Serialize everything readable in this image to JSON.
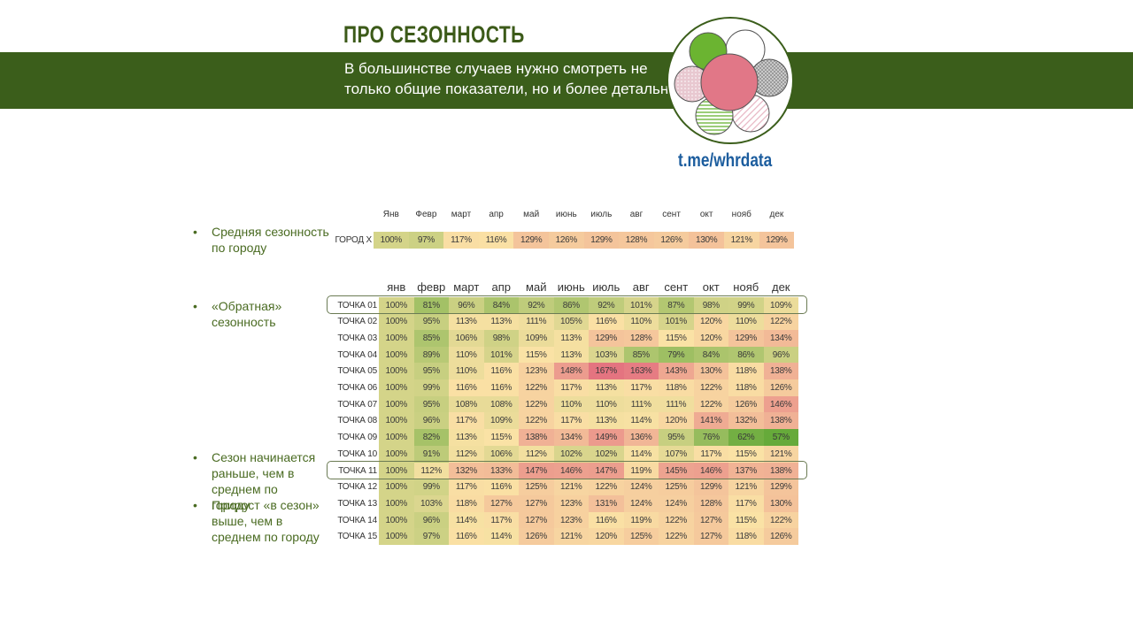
{
  "header": {
    "title": "ПРО СЕЗОННОСТЬ",
    "subtitle": "В большинстве случаев нужно смотреть не только общие показатели, но и более детально",
    "channel": "t.me/whrdata"
  },
  "bullets": [
    {
      "text": "Средняя сезонность по городу"
    },
    {
      "text": "«Обратная» сезонность"
    },
    {
      "text": "Сезон начинается раньше, чем в среднем по городу"
    },
    {
      "text": "Прирост «в сезон» выше, чем в среднем по городу"
    }
  ],
  "colors": {
    "green_dark": "#3b5e1b",
    "title_green": "#3c5a19",
    "link_blue": "#1c5d9e"
  },
  "city_table": {
    "months": [
      "Янв",
      "Февр",
      "март",
      "апр",
      "май",
      "июнь",
      "июль",
      "авг",
      "сент",
      "окт",
      "нояб",
      "дек"
    ],
    "row": {
      "label": "ГОРОД Х",
      "values": [
        100,
        97,
        117,
        116,
        129,
        126,
        129,
        128,
        126,
        130,
        121,
        129
      ]
    }
  },
  "points_table": {
    "months": [
      "янв",
      "февр",
      "март",
      "апр",
      "май",
      "июнь",
      "июль",
      "авг",
      "сент",
      "окт",
      "нояб",
      "дек"
    ],
    "rows": [
      {
        "label": "ТОЧКА 01",
        "values": [
          100,
          81,
          96,
          84,
          92,
          86,
          92,
          101,
          87,
          98,
          99,
          109
        ]
      },
      {
        "label": "ТОЧКА 02",
        "values": [
          100,
          95,
          113,
          113,
          111,
          105,
          116,
          110,
          101,
          120,
          110,
          122
        ]
      },
      {
        "label": "ТОЧКА 03",
        "values": [
          100,
          85,
          106,
          98,
          109,
          113,
          129,
          128,
          115,
          120,
          129,
          134
        ]
      },
      {
        "label": "ТОЧКА 04",
        "values": [
          100,
          89,
          110,
          101,
          115,
          113,
          103,
          85,
          79,
          84,
          86,
          96
        ]
      },
      {
        "label": "ТОЧКА 05",
        "values": [
          100,
          95,
          110,
          116,
          123,
          148,
          167,
          163,
          143,
          130,
          118,
          138
        ]
      },
      {
        "label": "ТОЧКА 06",
        "values": [
          100,
          99,
          116,
          116,
          122,
          117,
          113,
          117,
          118,
          122,
          118,
          126
        ]
      },
      {
        "label": "ТОЧКА 07",
        "values": [
          100,
          95,
          108,
          108,
          122,
          110,
          110,
          111,
          111,
          122,
          126,
          146
        ]
      },
      {
        "label": "ТОЧКА 08",
        "values": [
          100,
          96,
          117,
          109,
          122,
          117,
          113,
          114,
          120,
          141,
          132,
          138
        ]
      },
      {
        "label": "ТОЧКА 09",
        "values": [
          100,
          82,
          113,
          115,
          138,
          134,
          149,
          136,
          95,
          76,
          62,
          57
        ]
      },
      {
        "label": "ТОЧКА 10",
        "values": [
          100,
          91,
          112,
          106,
          112,
          102,
          102,
          114,
          107,
          117,
          115,
          121
        ]
      },
      {
        "label": "ТОЧКА 11",
        "values": [
          100,
          112,
          132,
          133,
          147,
          146,
          147,
          119,
          145,
          146,
          137,
          138
        ]
      },
      {
        "label": "ТОЧКА 12",
        "values": [
          100,
          99,
          117,
          116,
          125,
          121,
          122,
          124,
          125,
          129,
          121,
          129
        ]
      },
      {
        "label": "ТОЧКА 13",
        "values": [
          100,
          103,
          118,
          127,
          127,
          123,
          131,
          124,
          124,
          128,
          117,
          130
        ]
      },
      {
        "label": "ТОЧКА 14",
        "values": [
          100,
          96,
          114,
          117,
          127,
          123,
          116,
          119,
          122,
          127,
          115,
          122
        ]
      },
      {
        "label": "ТОЧКА 15",
        "values": [
          100,
          97,
          116,
          114,
          126,
          121,
          120,
          125,
          122,
          127,
          118,
          126
        ]
      }
    ]
  }
}
